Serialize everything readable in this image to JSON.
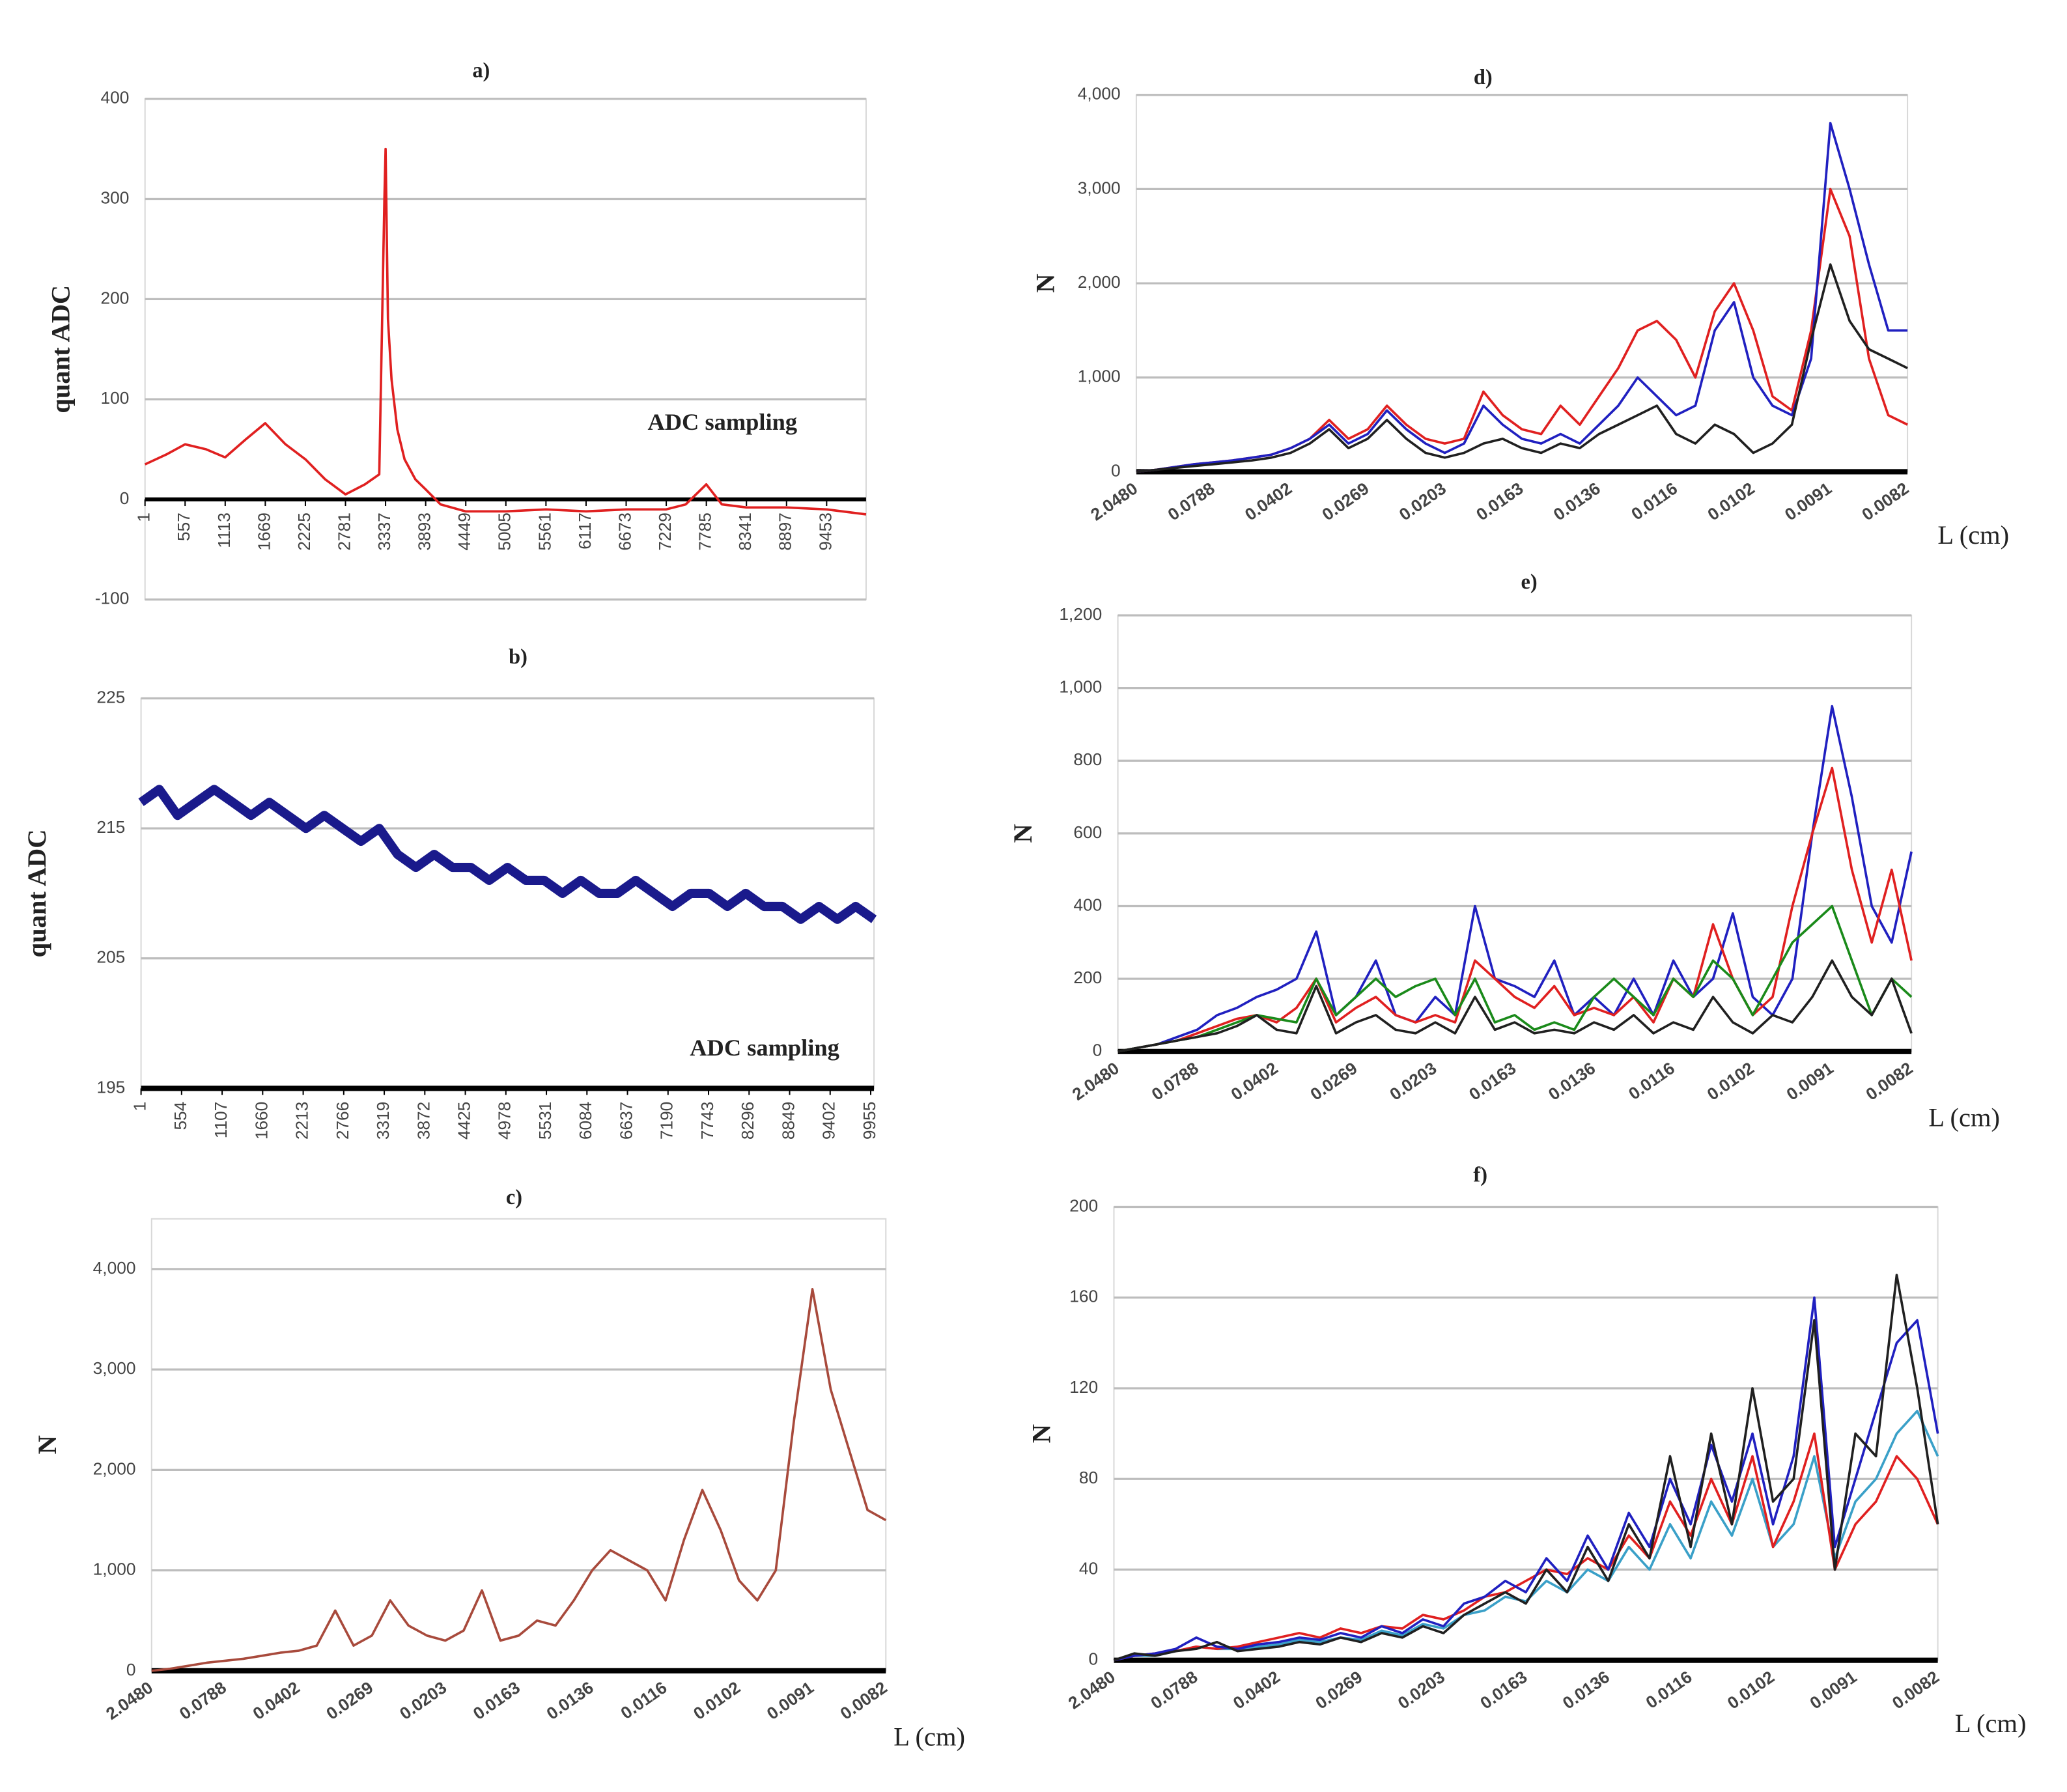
{
  "chart_data": [
    {
      "type": "line",
      "title": "a)",
      "y_label": "quant ADC",
      "annotation": "ADC sampling",
      "grid": true,
      "x": [
        1,
        300,
        557,
        850,
        1113,
        1400,
        1669,
        1950,
        2225,
        2500,
        2781,
        3050,
        3250,
        3320,
        3337,
        3370,
        3420,
        3500,
        3600,
        3750,
        3893,
        4100,
        4449,
        5005,
        5561,
        6117,
        6673,
        7229,
        7500,
        7785,
        8000,
        8341,
        8897,
        9453,
        10000
      ],
      "xlim": [
        1,
        10000
      ],
      "xticks": [
        1,
        557,
        1113,
        1669,
        2225,
        2781,
        3337,
        3893,
        4449,
        5005,
        5561,
        6117,
        6673,
        7229,
        7785,
        8341,
        8897,
        9453
      ],
      "ylim": [
        -100,
        400
      ],
      "yticks": [
        -100,
        0,
        100,
        200,
        300,
        400
      ],
      "series": [
        {
          "color": "#e02020",
          "values": [
            35,
            45,
            55,
            50,
            42,
            60,
            76,
            55,
            40,
            20,
            5,
            15,
            25,
            300,
            350,
            180,
            120,
            70,
            40,
            20,
            10,
            -5,
            -12,
            -12,
            -10,
            -12,
            -10,
            -10,
            -5,
            15,
            -5,
            -8,
            -8,
            -10,
            -15
          ]
        }
      ]
    },
    {
      "type": "line",
      "title": "b)",
      "y_label": "quant ADC",
      "annotation": "ADC sampling",
      "grid": true,
      "x": [
        1,
        250,
        500,
        750,
        1000,
        1250,
        1500,
        1750,
        2000,
        2250,
        2500,
        2750,
        3000,
        3250,
        3500,
        3750,
        4000,
        4250,
        4500,
        4750,
        5000,
        5250,
        5500,
        5750,
        6000,
        6250,
        6500,
        6750,
        7000,
        7250,
        7500,
        7750,
        8000,
        8250,
        8500,
        8750,
        9000,
        9250,
        9500,
        9750,
        10000
      ],
      "xlim": [
        1,
        10000
      ],
      "xticks": [
        1,
        554,
        1107,
        1660,
        2213,
        2766,
        3319,
        3872,
        4425,
        4978,
        5531,
        6084,
        6637,
        7190,
        7743,
        8296,
        8849,
        9402,
        9955
      ],
      "ylim": [
        195,
        225
      ],
      "yticks": [
        195,
        205,
        215,
        225
      ],
      "series": [
        {
          "color": "#1a1a8c",
          "values": [
            217,
            218,
            216,
            217,
            218,
            217,
            216,
            217,
            216,
            215,
            216,
            215,
            214,
            215,
            213,
            212,
            213,
            212,
            212,
            211,
            212,
            211,
            211,
            210,
            211,
            210,
            210,
            211,
            210,
            209,
            210,
            210,
            209,
            210,
            209,
            209,
            208,
            209,
            208,
            209,
            208
          ]
        }
      ]
    },
    {
      "type": "line",
      "title": "c)",
      "y_label": "N",
      "x_label": "L (cm)",
      "grid": true,
      "categories": [
        "2.0480",
        null,
        null,
        null,
        "0.0788",
        null,
        null,
        null,
        "0.0402",
        null,
        null,
        null,
        "0.0269",
        null,
        null,
        null,
        "0.0203",
        null,
        null,
        null,
        "0.0163",
        null,
        null,
        null,
        "0.0136",
        null,
        null,
        null,
        "0.0116",
        null,
        null,
        null,
        "0.0102",
        null,
        null,
        null,
        "0.0091",
        null,
        null,
        null,
        "0.0082"
      ],
      "ylim": [
        0,
        4500
      ],
      "yticks": [
        0,
        {
          "value": 1000,
          "label": "1,000"
        },
        {
          "value": 2000,
          "label": "2,000"
        },
        {
          "value": 3000,
          "label": "3,000"
        },
        {
          "value": 4000,
          "label": "4,000"
        }
      ],
      "series": [
        {
          "color": "#a84a3c",
          "values": [
            0,
            20,
            50,
            80,
            100,
            120,
            150,
            180,
            200,
            250,
            600,
            250,
            350,
            700,
            450,
            350,
            300,
            400,
            800,
            300,
            350,
            500,
            450,
            700,
            1000,
            1200,
            1100,
            1000,
            700,
            1300,
            1800,
            1400,
            900,
            700,
            1000,
            2500,
            3800,
            2800,
            2200,
            1600,
            1500
          ]
        }
      ]
    },
    {
      "type": "line",
      "title": "d)",
      "y_label": "N",
      "x_label": "L (cm)",
      "grid": true,
      "categories": [
        "2.0480",
        null,
        null,
        null,
        "0.0788",
        null,
        null,
        null,
        "0.0402",
        null,
        null,
        null,
        "0.0269",
        null,
        null,
        null,
        "0.0203",
        null,
        null,
        null,
        "0.0163",
        null,
        null,
        null,
        "0.0136",
        null,
        null,
        null,
        "0.0116",
        null,
        null,
        null,
        "0.0102",
        null,
        null,
        null,
        "0.0091",
        null,
        null,
        null,
        "0.0082"
      ],
      "ylim": [
        0,
        4000
      ],
      "yticks": [
        0,
        {
          "value": 1000,
          "label": "1,000"
        },
        {
          "value": 2000,
          "label": "2,000"
        },
        {
          "value": 3000,
          "label": "3,000"
        },
        {
          "value": 4000,
          "label": "4,000"
        }
      ],
      "series": [
        {
          "color": "#e02020",
          "values": [
            0,
            20,
            50,
            80,
            100,
            120,
            150,
            180,
            250,
            350,
            550,
            350,
            450,
            700,
            500,
            350,
            300,
            350,
            850,
            600,
            450,
            400,
            700,
            500,
            800,
            1100,
            1500,
            1600,
            1400,
            1000,
            1700,
            2000,
            1500,
            800,
            650,
            1500,
            3000,
            2500,
            1200,
            600,
            500
          ]
        },
        {
          "color": "#2020c0",
          "values": [
            0,
            20,
            50,
            80,
            100,
            120,
            150,
            180,
            250,
            350,
            500,
            300,
            400,
            650,
            450,
            300,
            200,
            300,
            700,
            500,
            350,
            300,
            400,
            300,
            500,
            700,
            1000,
            800,
            600,
            700,
            1500,
            1800,
            1000,
            700,
            600,
            1200,
            3700,
            3000,
            2200,
            1500,
            1500
          ]
        },
        {
          "color": "#202020",
          "values": [
            0,
            20,
            40,
            60,
            80,
            100,
            120,
            150,
            200,
            300,
            450,
            250,
            350,
            550,
            350,
            200,
            150,
            200,
            300,
            350,
            250,
            200,
            300,
            250,
            400,
            500,
            600,
            700,
            400,
            300,
            500,
            400,
            200,
            300,
            500,
            1400,
            2200,
            1600,
            1300,
            1200,
            1100
          ]
        }
      ]
    },
    {
      "type": "line",
      "title": "e)",
      "y_label": "N",
      "x_label": "L (cm)",
      "grid": true,
      "categories": [
        "2.0480",
        null,
        null,
        null,
        "0.0788",
        null,
        null,
        null,
        "0.0402",
        null,
        null,
        null,
        "0.0269",
        null,
        null,
        null,
        "0.0203",
        null,
        null,
        null,
        "0.0163",
        null,
        null,
        null,
        "0.0136",
        null,
        null,
        null,
        "0.0116",
        null,
        null,
        null,
        "0.0102",
        null,
        null,
        null,
        "0.0091",
        null,
        null,
        null,
        "0.0082"
      ],
      "ylim": [
        0,
        1200
      ],
      "yticks": [
        0,
        200,
        400,
        600,
        800,
        {
          "value": 1000,
          "label": "1,000"
        },
        {
          "value": 1200,
          "label": "1,200"
        }
      ],
      "series": [
        {
          "color": "#2020c0",
          "values": [
            0,
            10,
            20,
            40,
            60,
            100,
            120,
            150,
            170,
            200,
            330,
            100,
            150,
            250,
            100,
            80,
            150,
            100,
            400,
            200,
            180,
            150,
            250,
            100,
            150,
            100,
            200,
            100,
            250,
            150,
            200,
            380,
            150,
            100,
            200,
            600,
            950,
            700,
            400,
            300,
            550
          ]
        },
        {
          "color": "#e02020",
          "values": [
            0,
            10,
            20,
            30,
            50,
            70,
            90,
            100,
            80,
            120,
            200,
            80,
            120,
            150,
            100,
            80,
            100,
            80,
            250,
            200,
            150,
            120,
            180,
            100,
            120,
            100,
            150,
            80,
            200,
            150,
            350,
            200,
            100,
            150,
            400,
            600,
            780,
            500,
            300,
            500,
            250
          ]
        },
        {
          "color": "#1a8a1a",
          "values": [
            0,
            10,
            20,
            30,
            40,
            60,
            80,
            100,
            90,
            80,
            200,
            100,
            150,
            200,
            150,
            180,
            200,
            100,
            200,
            80,
            100,
            60,
            80,
            60,
            150,
            200,
            150,
            100,
            200,
            150,
            250,
            200,
            100,
            200,
            300,
            350,
            400,
            250,
            100,
            200,
            150
          ]
        },
        {
          "color": "#202020",
          "values": [
            0,
            10,
            20,
            30,
            40,
            50,
            70,
            100,
            60,
            50,
            180,
            50,
            80,
            100,
            60,
            50,
            80,
            50,
            150,
            60,
            80,
            50,
            60,
            50,
            80,
            60,
            100,
            50,
            80,
            60,
            150,
            80,
            50,
            100,
            80,
            150,
            250,
            150,
            100,
            200,
            50
          ]
        }
      ]
    },
    {
      "type": "line",
      "title": "f)",
      "y_label": "N",
      "x_label": "L (cm)",
      "grid": true,
      "categories": [
        "2.0480",
        null,
        null,
        null,
        "0.0788",
        null,
        null,
        null,
        "0.0402",
        null,
        null,
        null,
        "0.0269",
        null,
        null,
        null,
        "0.0203",
        null,
        null,
        null,
        "0.0163",
        null,
        null,
        null,
        "0.0136",
        null,
        null,
        null,
        "0.0116",
        null,
        null,
        null,
        "0.0102",
        null,
        null,
        null,
        "0.0091",
        null,
        null,
        null,
        "0.0082"
      ],
      "ylim": [
        0,
        200
      ],
      "yticks": [
        0,
        40,
        80,
        120,
        160,
        200
      ],
      "series": [
        {
          "color": "#3aa0c8",
          "values": [
            0,
            2,
            2,
            4,
            6,
            5,
            5,
            6,
            7,
            9,
            8,
            10,
            9,
            13,
            11,
            16,
            14,
            20,
            22,
            28,
            26,
            35,
            30,
            40,
            35,
            50,
            40,
            60,
            45,
            70,
            55,
            80,
            50,
            60,
            90,
            45,
            70,
            80,
            100,
            110,
            90
          ]
        },
        {
          "color": "#e02020",
          "values": [
            0,
            2,
            3,
            4,
            6,
            5,
            6,
            8,
            10,
            12,
            10,
            14,
            12,
            15,
            14,
            20,
            18,
            22,
            28,
            30,
            35,
            40,
            38,
            45,
            40,
            55,
            45,
            70,
            55,
            80,
            60,
            90,
            50,
            70,
            100,
            40,
            60,
            70,
            90,
            80,
            60
          ]
        },
        {
          "color": "#2020c0",
          "values": [
            0,
            2,
            3,
            5,
            10,
            6,
            5,
            7,
            8,
            10,
            9,
            12,
            10,
            15,
            12,
            18,
            15,
            25,
            28,
            35,
            30,
            45,
            35,
            55,
            40,
            65,
            50,
            80,
            60,
            95,
            70,
            100,
            60,
            90,
            160,
            50,
            80,
            110,
            140,
            150,
            100
          ]
        },
        {
          "color": "#202020",
          "values": [
            0,
            3,
            2,
            4,
            5,
            8,
            4,
            5,
            6,
            8,
            7,
            10,
            8,
            12,
            10,
            15,
            12,
            20,
            25,
            30,
            25,
            40,
            30,
            50,
            35,
            60,
            45,
            90,
            50,
            100,
            60,
            120,
            70,
            80,
            150,
            40,
            100,
            90,
            170,
            120,
            60
          ]
        }
      ]
    }
  ]
}
